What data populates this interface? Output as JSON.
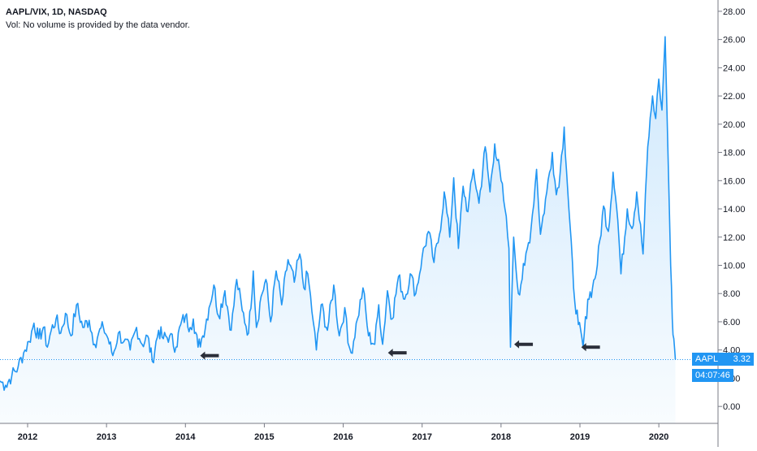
{
  "chart_data": {
    "type": "line",
    "title": "AAPL/VIX, 1D, NASDAQ",
    "subtitle": "Vol: No volume is provided by the data vendor.",
    "xlabel": "",
    "ylabel": "",
    "xlim": [
      2011.65,
      2020.75
    ],
    "ylim": [
      -1.2,
      28.8
    ],
    "y_ticks": [
      "0.00",
      "2.00",
      "4.00",
      "6.00",
      "8.00",
      "10.00",
      "12.00",
      "14.00",
      "16.00",
      "18.00",
      "20.00",
      "22.00",
      "24.00",
      "26.00",
      "28.00"
    ],
    "x_ticks": [
      "2012",
      "2013",
      "2014",
      "2015",
      "2016",
      "2017",
      "2018",
      "2019",
      "2020"
    ],
    "series": [
      {
        "name": "AAPL",
        "color": "#2196f3",
        "x": [
          2011.65,
          2011.72,
          2011.8,
          2011.88,
          2011.95,
          2012.02,
          2012.08,
          2012.14,
          2012.2,
          2012.25,
          2012.3,
          2012.36,
          2012.42,
          2012.48,
          2012.55,
          2012.62,
          2012.7,
          2012.78,
          2012.85,
          2012.9,
          2012.96,
          2013.02,
          2013.08,
          2013.15,
          2013.22,
          2013.3,
          2013.38,
          2013.45,
          2013.52,
          2013.58,
          2013.66,
          2013.72,
          2013.8,
          2013.88,
          2013.94,
          2014.0,
          2014.06,
          2014.1,
          2014.16,
          2014.22,
          2014.3,
          2014.36,
          2014.42,
          2014.5,
          2014.58,
          2014.65,
          2014.72,
          2014.8,
          2014.86,
          2014.9,
          2014.96,
          2015.02,
          2015.08,
          2015.15,
          2015.22,
          2015.3,
          2015.38,
          2015.45,
          2015.5,
          2015.55,
          2015.62,
          2015.66,
          2015.72,
          2015.8,
          2015.88,
          2015.95,
          2016.02,
          2016.06,
          2016.1,
          2016.18,
          2016.25,
          2016.32,
          2016.4,
          2016.45,
          2016.5,
          2016.56,
          2016.62,
          2016.7,
          2016.78,
          2016.85,
          2016.92,
          2017.0,
          2017.08,
          2017.15,
          2017.22,
          2017.28,
          2017.35,
          2017.4,
          2017.46,
          2017.52,
          2017.58,
          2017.65,
          2017.72,
          2017.8,
          2017.86,
          2017.92,
          2018.0,
          2018.05,
          2018.1,
          2018.12,
          2018.16,
          2018.22,
          2018.3,
          2018.38,
          2018.45,
          2018.5,
          2018.58,
          2018.65,
          2018.7,
          2018.75,
          2018.8,
          2018.86,
          2018.92,
          2018.98,
          2019.04,
          2019.1,
          2019.16,
          2019.22,
          2019.3,
          2019.36,
          2019.42,
          2019.48,
          2019.52,
          2019.6,
          2019.66,
          2019.72,
          2019.8,
          2019.86,
          2019.92,
          2019.96,
          2020.0,
          2020.04,
          2020.08,
          2020.12,
          2020.15,
          2020.17,
          2020.19,
          2020.21
        ],
        "values": [
          1.8,
          1.5,
          2.2,
          2.8,
          3.8,
          4.6,
          5.9,
          4.8,
          5.6,
          4.2,
          5.4,
          6.2,
          5.2,
          6.6,
          5.0,
          7.2,
          5.6,
          6.1,
          4.4,
          5.2,
          5.6,
          4.8,
          3.6,
          5.2,
          4.6,
          4.0,
          5.6,
          4.4,
          5.0,
          3.2,
          5.4,
          4.8,
          5.0,
          4.2,
          5.8,
          6.4,
          5.6,
          6.2,
          4.2,
          5.0,
          7.0,
          8.6,
          6.4,
          8.2,
          5.4,
          9.0,
          6.8,
          5.2,
          9.6,
          5.6,
          7.8,
          9.0,
          6.0,
          9.6,
          7.2,
          10.4,
          8.8,
          10.8,
          8.4,
          9.4,
          6.0,
          4.0,
          7.2,
          5.4,
          8.6,
          5.0,
          7.0,
          4.5,
          3.8,
          6.2,
          8.4,
          5.0,
          4.4,
          7.2,
          4.4,
          8.2,
          6.2,
          9.2,
          7.6,
          9.4,
          8.0,
          10.6,
          12.4,
          10.2,
          12.2,
          15.2,
          12.0,
          16.2,
          11.2,
          15.6,
          13.8,
          16.8,
          14.4,
          18.4,
          15.2,
          18.6,
          16.0,
          14.0,
          11.2,
          4.2,
          12.0,
          8.0,
          10.0,
          12.6,
          16.8,
          12.2,
          15.2,
          18.0,
          15.0,
          16.6,
          19.8,
          14.0,
          8.4,
          5.8,
          4.2,
          7.6,
          8.4,
          10.0,
          14.2,
          12.4,
          16.6,
          13.2,
          9.4,
          14.0,
          12.6,
          15.2,
          10.8,
          18.4,
          22.0,
          20.4,
          23.2,
          21.0,
          26.2,
          17.0,
          10.0,
          6.2,
          4.8,
          3.32
        ]
      }
    ],
    "last_value_badge": {
      "label": "AAPL",
      "value": "3.32"
    },
    "timer_badge": "04:07:46",
    "annotations": [
      {
        "type": "arrow-left",
        "x": 2014.3,
        "y": 3.6
      },
      {
        "type": "arrow-left",
        "x": 2016.68,
        "y": 3.8
      },
      {
        "type": "arrow-left",
        "x": 2018.28,
        "y": 4.4
      },
      {
        "type": "arrow-left",
        "x": 2019.13,
        "y": 4.2
      }
    ],
    "colors": {
      "line": "#2196f3",
      "fill": "#e3f2fd",
      "axis": "#787b86",
      "text": "#131722",
      "priceLine": "#2196f3"
    }
  }
}
